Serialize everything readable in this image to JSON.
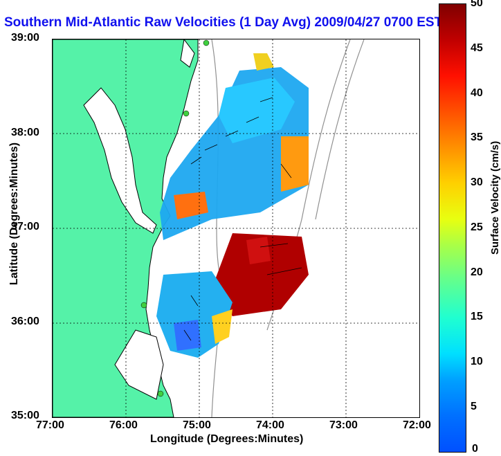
{
  "title": "Southern Mid-Atlantic Raw Velocities (1 Day Avg) 2009/04/27 0700 EST",
  "axes": {
    "x_label": "Longitude (Degrees:Minutes)",
    "y_label": "Latitude (Degrees:Minutes)",
    "x_ticks": [
      "77:00",
      "76:00",
      "75:00",
      "74:00",
      "73:00",
      "72:00"
    ],
    "y_ticks": [
      "39:00",
      "38:00",
      "37:00",
      "36:00",
      "35:00"
    ]
  },
  "colorbar": {
    "label": "Surface Velocity (cm/s)",
    "ticks": [
      "50",
      "45",
      "40",
      "35",
      "30",
      "25",
      "20",
      "15",
      "10",
      "5",
      "0"
    ],
    "range": [
      0,
      50
    ]
  },
  "colors": {
    "land": "#55f2a8",
    "title": "#1010ee",
    "coast": "#000000",
    "bathy": "#808080"
  }
}
